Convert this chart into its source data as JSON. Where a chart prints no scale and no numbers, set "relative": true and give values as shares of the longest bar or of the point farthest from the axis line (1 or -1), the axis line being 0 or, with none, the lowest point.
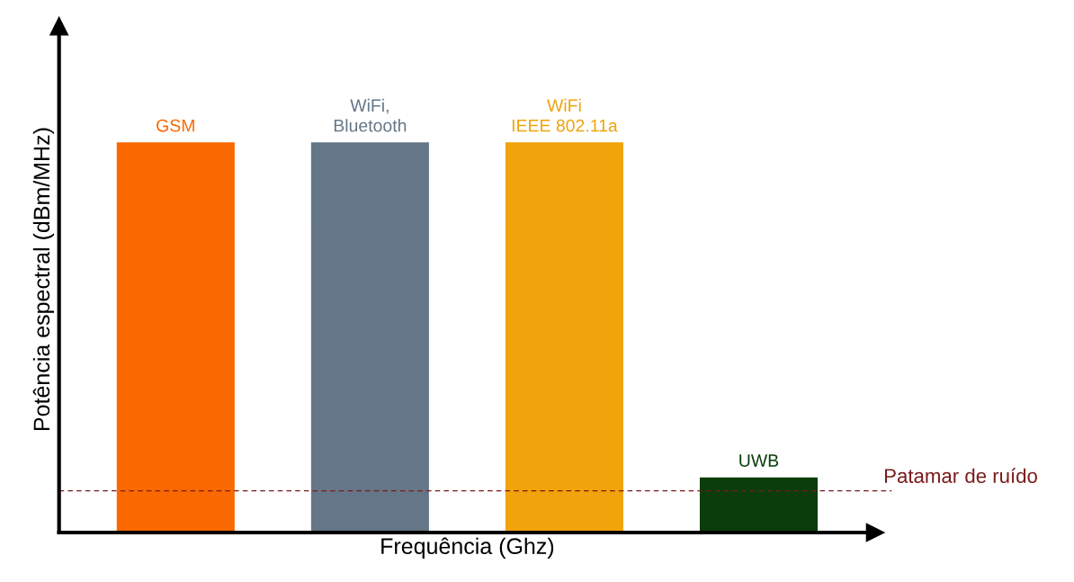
{
  "chart_data": {
    "type": "bar",
    "relative": true,
    "xlabel": "Frequência (Ghz)",
    "ylabel": "Potência espectral (dBm/MHz)",
    "categories": [
      "GSM",
      "WiFi,\nBluetooth",
      "WiFi\nIEEE 802.11a",
      "UWB"
    ],
    "values": [
      1,
      1,
      1,
      0.14
    ],
    "colors": [
      "#fa6800",
      "#647687",
      "#f0a30a",
      "#0a3d0a"
    ],
    "ref_lines": [
      {
        "axis": "y",
        "value": 0.107,
        "label": "Patamar de ruído",
        "color": "#7a1a1a",
        "line_style": "dashed"
      }
    ],
    "legend": false
  }
}
